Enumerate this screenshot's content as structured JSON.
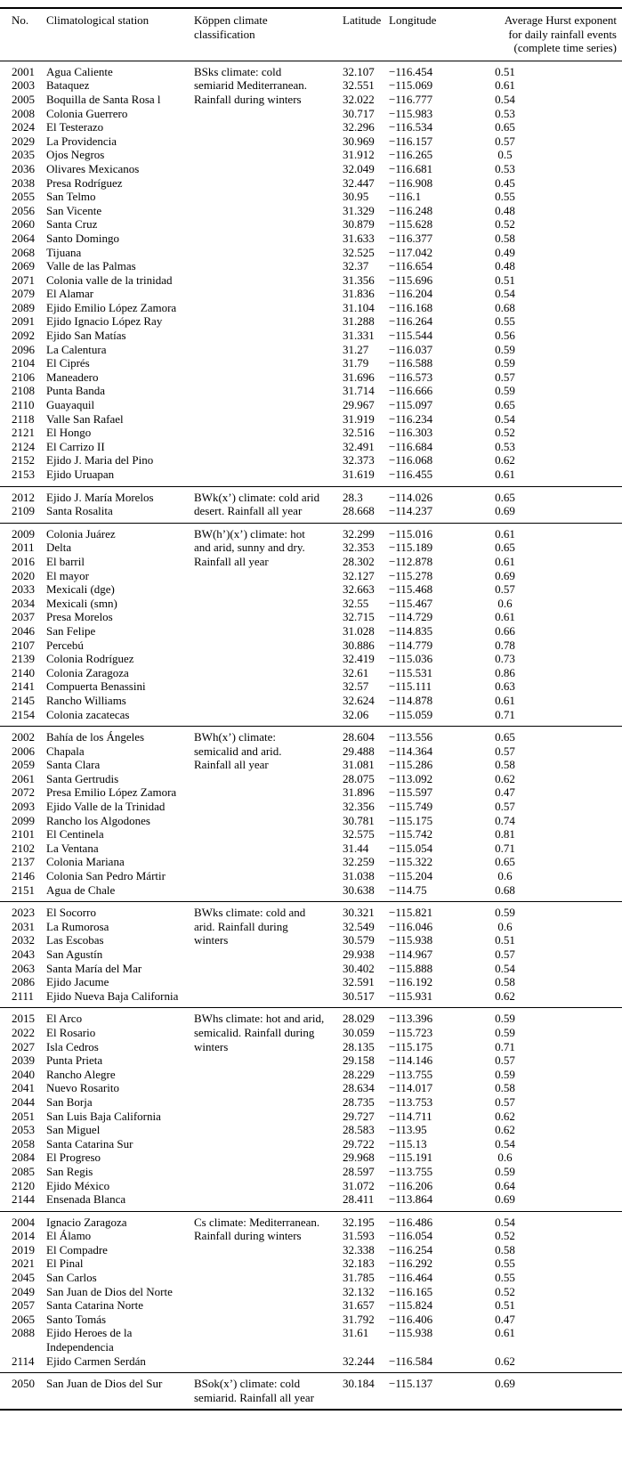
{
  "header": {
    "no": "No.",
    "station": "Climatological station",
    "koppen": "Köppen climate\nclassification",
    "latitude": "Latitude",
    "longitude": "Longitude",
    "hurst": "Average Hurst exponent\nfor daily rainfall events\n(complete time series)"
  },
  "sections": [
    {
      "koppen": "BSks climate: cold\nsemiarid Mediterranean.\nRainfall during winters",
      "rows": [
        [
          "2001",
          "Agua Caliente",
          "32.107",
          "−116.454",
          "0.51"
        ],
        [
          "2003",
          "Bataquez",
          "32.551",
          "−115.069",
          "0.61"
        ],
        [
          "2005",
          "Boquilla de Santa Rosa l",
          "32.022",
          "−116.777",
          "0.54"
        ],
        [
          "2008",
          "Colonia Guerrero",
          "30.717",
          "−115.983",
          "0.53"
        ],
        [
          "2024",
          "El Testerazo",
          "32.296",
          "−116.534",
          "0.65"
        ],
        [
          "2029",
          "La Providencia",
          "30.969",
          "−116.157",
          "0.57"
        ],
        [
          "2035",
          "Ojos Negros",
          "31.912",
          "−116.265",
          "0.5"
        ],
        [
          "2036",
          "Olivares Mexicanos",
          "32.049",
          "−116.681",
          "0.53"
        ],
        [
          "2038",
          "Presa Rodríguez",
          "32.447",
          "−116.908",
          "0.45"
        ],
        [
          "2055",
          "San Telmo",
          "30.95",
          "−116.1",
          "0.55"
        ],
        [
          "2056",
          "San Vicente",
          "31.329",
          "−116.248",
          "0.48"
        ],
        [
          "2060",
          "Santa Cruz",
          "30.879",
          "−115.628",
          "0.52"
        ],
        [
          "2064",
          "Santo Domingo",
          "31.633",
          "−116.377",
          "0.58"
        ],
        [
          "2068",
          "Tijuana",
          "32.525",
          "−117.042",
          "0.49"
        ],
        [
          "2069",
          "Valle de las Palmas",
          "32.37",
          "−116.654",
          "0.48"
        ],
        [
          "2071",
          "Colonia valle de la trinidad",
          "31.356",
          "−115.696",
          "0.51"
        ],
        [
          "2079",
          "El Alamar",
          "31.836",
          "−116.204",
          "0.54"
        ],
        [
          "2089",
          "Ejido Emilio López Zamora",
          "31.104",
          "−116.168",
          "0.68"
        ],
        [
          "2091",
          "Ejido Ignacio López Ray",
          "31.288",
          "−116.264",
          "0.55"
        ],
        [
          "2092",
          "Ejido San Matías",
          "31.331",
          "−115.544",
          "0.56"
        ],
        [
          "2096",
          "La Calentura",
          "31.27",
          "−116.037",
          "0.59"
        ],
        [
          "2104",
          "El Ciprés",
          "31.79",
          "−116.588",
          "0.59"
        ],
        [
          "2106",
          "Maneadero",
          "31.696",
          "−116.573",
          "0.57"
        ],
        [
          "2108",
          "Punta Banda",
          "31.714",
          "−116.666",
          "0.59"
        ],
        [
          "2110",
          "Guayaquil",
          "29.967",
          "−115.097",
          "0.65"
        ],
        [
          "2118",
          "Valle San Rafael",
          "31.919",
          "−116.234",
          "0.54"
        ],
        [
          "2121",
          "El Hongo",
          "32.516",
          "−116.303",
          "0.52"
        ],
        [
          "2124",
          "El Carrizo II",
          "32.491",
          "−116.684",
          "0.53"
        ],
        [
          "2152",
          "Ejido J. Maria del Pino",
          "32.373",
          "−116.068",
          "0.62"
        ],
        [
          "2153",
          "Ejido Uruapan",
          "31.619",
          "−116.455",
          "0.61"
        ]
      ]
    },
    {
      "koppen": "BWk(x’) climate: cold arid\ndesert. Rainfall all year",
      "rows": [
        [
          "2012",
          "Ejido J. María Morelos",
          "28.3",
          "−114.026",
          "0.65"
        ],
        [
          "2109",
          "Santa Rosalita",
          "28.668",
          "−114.237",
          "0.69"
        ]
      ]
    },
    {
      "koppen": "BW(h’)(x’) climate: hot\nand arid, sunny and dry.\nRainfall all year",
      "rows": [
        [
          "2009",
          "Colonia Juárez",
          "32.299",
          "−115.016",
          "0.61"
        ],
        [
          "2011",
          "Delta",
          "32.353",
          "−115.189",
          "0.65"
        ],
        [
          "2016",
          "El barril",
          "28.302",
          "−112.878",
          "0.61"
        ],
        [
          "2020",
          "El mayor",
          "32.127",
          "−115.278",
          "0.69"
        ],
        [
          "2033",
          "Mexicali (dge)",
          "32.663",
          "−115.468",
          "0.57"
        ],
        [
          "2034",
          "Mexicali (smn)",
          "32.55",
          "−115.467",
          "0.6"
        ],
        [
          "2037",
          "Presa Morelos",
          "32.715",
          "−114.729",
          "0.61"
        ],
        [
          "2046",
          "San Felipe",
          "31.028",
          "−114.835",
          "0.66"
        ],
        [
          "2107",
          "Percebú",
          "30.886",
          "−114.779",
          "0.78"
        ],
        [
          "2139",
          "Colonia Rodríguez",
          "32.419",
          "−115.036",
          "0.73"
        ],
        [
          "2140",
          "Colonia Zaragoza",
          "32.61",
          "−115.531",
          "0.86"
        ],
        [
          "2141",
          "Compuerta Benassini",
          "32.57",
          "−115.111",
          "0.63"
        ],
        [
          "2145",
          "Rancho Williams",
          "32.624",
          "−114.878",
          "0.61"
        ],
        [
          "2154",
          "Colonia zacatecas",
          "32.06",
          "−115.059",
          "0.71"
        ]
      ]
    },
    {
      "koppen": "BWh(x’) climate:\nsemicalid and arid.\nRainfall all year",
      "rows": [
        [
          "2002",
          "Bahía de los Ángeles",
          "28.604",
          "−113.556",
          "0.65"
        ],
        [
          "2006",
          "Chapala",
          "29.488",
          "−114.364",
          "0.57"
        ],
        [
          "2059",
          "Santa Clara",
          "31.081",
          "−115.286",
          "0.58"
        ],
        [
          "2061",
          "Santa Gertrudis",
          "28.075",
          "−113.092",
          "0.62"
        ],
        [
          "2072",
          "Presa Emilio López Zamora",
          "31.896",
          "−115.597",
          "0.47"
        ],
        [
          "2093",
          "Ejido Valle de la Trinidad",
          "32.356",
          "−115.749",
          "0.57"
        ],
        [
          "2099",
          "Rancho los Algodones",
          "30.781",
          "−115.175",
          "0.74"
        ],
        [
          "2101",
          "El Centinela",
          "32.575",
          "−115.742",
          "0.81"
        ],
        [
          "2102",
          "La Ventana",
          "31.44",
          "−115.054",
          "0.71"
        ],
        [
          "2137",
          "Colonia Mariana",
          "32.259",
          "−115.322",
          "0.65"
        ],
        [
          "2146",
          "Colonia San Pedro Mártir",
          "31.038",
          "−115.204",
          "0.6"
        ],
        [
          "2151",
          "Agua de Chale",
          "30.638",
          "−114.75",
          "0.68"
        ]
      ]
    },
    {
      "koppen": "BWks climate: cold and\narid. Rainfall during\nwinters",
      "rows": [
        [
          "2023",
          "El Socorro",
          "30.321",
          "−115.821",
          "0.59"
        ],
        [
          "2031",
          "La Rumorosa",
          "32.549",
          "−116.046",
          "0.6"
        ],
        [
          "2032",
          "Las Escobas",
          "30.579",
          "−115.938",
          "0.51"
        ],
        [
          "2043",
          "San Agustín",
          "29.938",
          "−114.967",
          "0.57"
        ],
        [
          "2063",
          "Santa María del Mar",
          "30.402",
          "−115.888",
          "0.54"
        ],
        [
          "2086",
          "Ejido Jacume",
          "32.591",
          "−116.192",
          "0.58"
        ],
        [
          "2111",
          "Ejido Nueva Baja California",
          "30.517",
          "−115.931",
          "0.62"
        ]
      ]
    },
    {
      "koppen": "BWhs climate: hot and arid,\nsemicalid. Rainfall during\nwinters",
      "rows": [
        [
          "2015",
          "El Arco",
          "28.029",
          "−113.396",
          "0.59"
        ],
        [
          "2022",
          "El Rosario",
          "30.059",
          "−115.723",
          "0.59"
        ],
        [
          "2027",
          "Isla Cedros",
          "28.135",
          "−115.175",
          "0.71"
        ],
        [
          "2039",
          "Punta Prieta",
          "29.158",
          "−114.146",
          "0.57"
        ],
        [
          "2040",
          "Rancho Alegre",
          "28.229",
          "−113.755",
          "0.59"
        ],
        [
          "2041",
          "Nuevo Rosarito",
          "28.634",
          "−114.017",
          "0.58"
        ],
        [
          "2044",
          "San Borja",
          "28.735",
          "−113.753",
          "0.57"
        ],
        [
          "2051",
          "San Luis Baja California",
          "29.727",
          "−114.711",
          "0.62"
        ],
        [
          "2053",
          "San Miguel",
          "28.583",
          "−113.95",
          "0.62"
        ],
        [
          "2058",
          "Santa Catarina Sur",
          "29.722",
          "−115.13",
          "0.54"
        ],
        [
          "2084",
          "El Progreso",
          "29.968",
          "−115.191",
          "0.6"
        ],
        [
          "2085",
          "San Regis",
          "28.597",
          "−113.755",
          "0.59"
        ],
        [
          "2120",
          "Ejido México",
          "31.072",
          "−116.206",
          "0.64"
        ],
        [
          "2144",
          "Ensenada Blanca",
          "28.411",
          "−113.864",
          "0.69"
        ]
      ]
    },
    {
      "koppen": "Cs climate: Mediterranean.\nRainfall during winters",
      "rows": [
        [
          "2004",
          "Ignacio Zaragoza",
          "32.195",
          "−116.486",
          "0.54"
        ],
        [
          "2014",
          "El Álamo",
          "31.593",
          "−116.054",
          "0.52"
        ],
        [
          "2019",
          "El Compadre",
          "32.338",
          "−116.254",
          "0.58"
        ],
        [
          "2021",
          "El Pinal",
          "32.183",
          "−116.292",
          "0.55"
        ],
        [
          "2045",
          "San Carlos",
          "31.785",
          "−116.464",
          "0.55"
        ],
        [
          "2049",
          "San Juan de Dios del Norte",
          "32.132",
          "−116.165",
          "0.52"
        ],
        [
          "2057",
          "Santa Catarina Norte",
          "31.657",
          "−115.824",
          "0.51"
        ],
        [
          "2065",
          "Santo Tomás",
          "31.792",
          "−116.406",
          "0.47"
        ],
        [
          "2088",
          "Ejido Heroes de la\nIndependencia",
          "31.61",
          "−115.938",
          "0.61"
        ],
        [
          "2114",
          "Ejido Carmen Serdán",
          "32.244",
          "−116.584",
          "0.62"
        ]
      ]
    },
    {
      "koppen": "BSok(x’) climate: cold\nsemiarid. Rainfall all year",
      "rows": [
        [
          "2050",
          "San Juan de Dios del Sur",
          "30.184",
          "−115.137",
          "0.69"
        ]
      ]
    }
  ]
}
